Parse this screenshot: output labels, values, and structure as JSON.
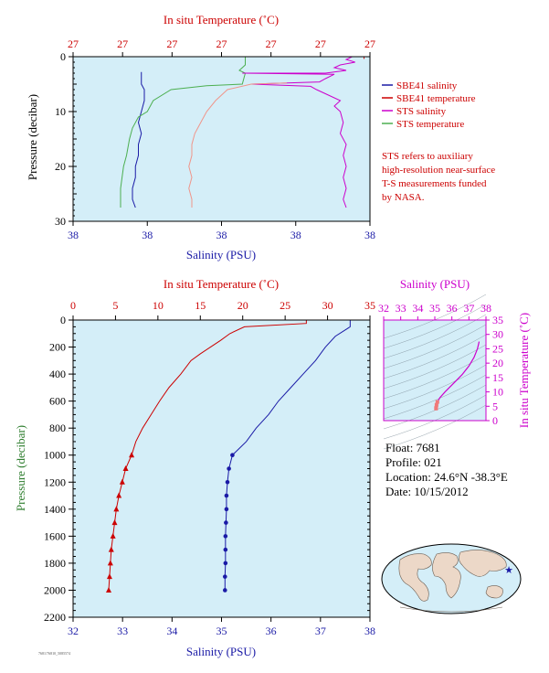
{
  "info": {
    "float": "Float:  7681",
    "profile": "Profile:  021",
    "location": "Location:  24.6°N  -38.3°E",
    "date": "Date:  10/15/2012"
  },
  "note": [
    "STS refers to auxiliary",
    "high-resolution near-surface",
    "T-S measurements funded",
    "by NASA."
  ],
  "footer": "7681/76810_5085574",
  "colors": {
    "salinity": "#1a1aa6",
    "temperature": "#cc0000",
    "sts_salinity": "#cc00cc",
    "sts_temperature": "#4caf50",
    "plot_bg": "#d4eef8"
  },
  "chart_data": [
    {
      "type": "line",
      "title_top": "In situ Temperature (˚C)",
      "xlabel": "Salinity (PSU)",
      "ylabel": "Pressure (decibar)",
      "ylim": [
        0,
        30
      ],
      "y_ticks": [
        "0",
        "10",
        "20",
        "30"
      ],
      "x_bottom_ticks": [
        "38",
        "38",
        "38",
        "38",
        "38"
      ],
      "x_top_ticks": [
        "27",
        "27",
        "27",
        "27",
        "27",
        "27",
        "27"
      ],
      "legend": [
        {
          "name": "SBE41 salinity",
          "color": "#1a1aa6"
        },
        {
          "name": "SBE41 temperature",
          "color": "#cc0000"
        },
        {
          "name": "STS salinity",
          "color": "#cc00cc"
        },
        {
          "name": "STS temperature",
          "color": "#4caf50"
        }
      ],
      "series": [
        {
          "name": "SBE41 salinity",
          "color": "#1a1aa6",
          "points": [
            [
              0.23,
              2.8
            ],
            [
              0.23,
              5
            ],
            [
              0.24,
              6
            ],
            [
              0.24,
              8
            ],
            [
              0.23,
              10
            ],
            [
              0.22,
              12
            ],
            [
              0.23,
              14
            ],
            [
              0.22,
              16
            ],
            [
              0.22,
              18
            ],
            [
              0.21,
              20
            ],
            [
              0.21,
              22
            ],
            [
              0.2,
              24
            ],
            [
              0.2,
              26
            ],
            [
              0.21,
              27.5
            ]
          ]
        },
        {
          "name": "STS temperature",
          "color": "#4caf50",
          "points": [
            [
              0.58,
              0
            ],
            [
              0.58,
              1.5
            ],
            [
              0.56,
              2.5
            ],
            [
              0.58,
              3
            ],
            [
              0.57,
              5
            ],
            [
              0.45,
              5.3
            ],
            [
              0.33,
              6
            ],
            [
              0.27,
              8
            ],
            [
              0.25,
              10
            ],
            [
              0.22,
              11
            ],
            [
              0.2,
              13
            ],
            [
              0.19,
              15
            ],
            [
              0.18,
              18
            ],
            [
              0.17,
              20
            ],
            [
              0.16,
              24
            ],
            [
              0.16,
              27.5
            ]
          ]
        },
        {
          "name": "SBE41 temperature",
          "color": "#cc0000",
          "points": [
            [
              0.0,
              0
            ],
            [
              0.98,
              0
            ],
            [
              0.98,
              0.4
            ]
          ]
        },
        {
          "name": "STS salinity",
          "color": "#cc00cc",
          "points": [
            [
              0.94,
              0
            ],
            [
              0.92,
              0.5
            ],
            [
              0.95,
              1
            ],
            [
              0.9,
              1.5
            ],
            [
              0.88,
              2
            ],
            [
              0.92,
              2.5
            ],
            [
              0.85,
              3
            ],
            [
              0.57,
              3
            ],
            [
              0.88,
              3.2
            ],
            [
              0.85,
              4
            ],
            [
              0.83,
              4.6
            ],
            [
              0.6,
              5
            ],
            [
              0.8,
              5.4
            ],
            [
              0.82,
              6
            ],
            [
              0.86,
              7
            ],
            [
              0.9,
              8
            ],
            [
              0.88,
              9
            ],
            [
              0.9,
              10
            ],
            [
              0.91,
              12
            ],
            [
              0.9,
              14
            ],
            [
              0.92,
              16
            ],
            [
              0.91,
              18
            ],
            [
              0.92,
              20
            ],
            [
              0.91,
              22
            ],
            [
              0.92,
              24
            ],
            [
              0.91,
              26
            ],
            [
              0.92,
              27.5
            ]
          ]
        },
        {
          "name": "STS temperature (salmon)",
          "color": "#f0958a",
          "points": [
            [
              0.72,
              4.8
            ],
            [
              0.6,
              5
            ],
            [
              0.52,
              6
            ],
            [
              0.48,
              8
            ],
            [
              0.45,
              10
            ],
            [
              0.43,
              12
            ],
            [
              0.41,
              14
            ],
            [
              0.4,
              16
            ],
            [
              0.4,
              18
            ],
            [
              0.39,
              20
            ],
            [
              0.4,
              22
            ],
            [
              0.39,
              24
            ],
            [
              0.4,
              26
            ],
            [
              0.4,
              27.5
            ]
          ]
        }
      ]
    },
    {
      "type": "line",
      "title_top": "In situ Temperature (˚C)",
      "xlabel": "Salinity (PSU)",
      "ylabel": "Pressure (decibar)",
      "xlim_salinity": [
        32,
        38
      ],
      "xlim_temperature": [
        0,
        35
      ],
      "ylim": [
        2200,
        0
      ],
      "x_bottom_ticks": [
        "32",
        "33",
        "34",
        "35",
        "36",
        "37",
        "38"
      ],
      "x_top_ticks": [
        "0",
        "5",
        "10",
        "15",
        "20",
        "25",
        "30",
        "35"
      ],
      "y_ticks": [
        "0",
        "200",
        "400",
        "600",
        "800",
        "1000",
        "1200",
        "1400",
        "1600",
        "1800",
        "2000",
        "2200"
      ],
      "series": [
        {
          "name": "Temperature",
          "color": "#cc0000",
          "axis": "temperature",
          "points": [
            [
              27.5,
              0
            ],
            [
              27.5,
              25
            ],
            [
              20.2,
              50
            ],
            [
              18.5,
              100
            ],
            [
              17.4,
              150
            ],
            [
              16.2,
              200
            ],
            [
              15.0,
              250
            ],
            [
              13.9,
              300
            ],
            [
              12.7,
              400
            ],
            [
              11.3,
              500
            ],
            [
              10.2,
              600
            ],
            [
              9.2,
              700
            ],
            [
              8.2,
              800
            ],
            [
              7.4,
              900
            ],
            [
              6.9,
              1000
            ],
            [
              6.2,
              1100
            ],
            [
              5.8,
              1200
            ],
            [
              5.4,
              1300
            ],
            [
              5.1,
              1400
            ],
            [
              4.9,
              1500
            ],
            [
              4.7,
              1600
            ],
            [
              4.5,
              1700
            ],
            [
              4.4,
              1800
            ],
            [
              4.3,
              1900
            ],
            [
              4.2,
              2000
            ]
          ]
        },
        {
          "name": "Salinity",
          "color": "#1a1aa6",
          "axis": "salinity",
          "points": [
            [
              37.6,
              0
            ],
            [
              37.6,
              50
            ],
            [
              37.3,
              120
            ],
            [
              37.1,
              200
            ],
            [
              36.9,
              300
            ],
            [
              36.65,
              400
            ],
            [
              36.4,
              500
            ],
            [
              36.15,
              600
            ],
            [
              35.95,
              700
            ],
            [
              35.7,
              800
            ],
            [
              35.5,
              900
            ],
            [
              35.22,
              1000
            ],
            [
              35.15,
              1100
            ],
            [
              35.12,
              1200
            ],
            [
              35.1,
              1300
            ],
            [
              35.1,
              1400
            ],
            [
              35.09,
              1500
            ],
            [
              35.08,
              1600
            ],
            [
              35.08,
              1700
            ],
            [
              35.08,
              1800
            ],
            [
              35.07,
              1900
            ],
            [
              35.07,
              2000
            ]
          ]
        }
      ]
    },
    {
      "type": "scatter",
      "title_top": "Salinity (PSU)",
      "ylabel": "In situ Temperature (˚C)",
      "xlim": [
        32,
        38
      ],
      "ylim": [
        0,
        35
      ],
      "x_ticks": [
        "32",
        "33",
        "34",
        "35",
        "36",
        "37",
        "38"
      ],
      "y_ticks": [
        "0",
        "5",
        "10",
        "15",
        "20",
        "25",
        "30",
        "35"
      ],
      "series": [
        {
          "name": "T-S",
          "color": "#cc00cc",
          "points": [
            [
              37.6,
              27.5
            ],
            [
              37.5,
              25
            ],
            [
              37.3,
              22
            ],
            [
              37.0,
              19
            ],
            [
              36.6,
              16
            ],
            [
              36.1,
              13
            ],
            [
              35.6,
              10
            ],
            [
              35.3,
              8
            ],
            [
              35.15,
              6.5
            ],
            [
              35.1,
              5.5
            ],
            [
              35.08,
              4.5
            ],
            [
              35.07,
              4.2
            ]
          ]
        }
      ]
    }
  ]
}
